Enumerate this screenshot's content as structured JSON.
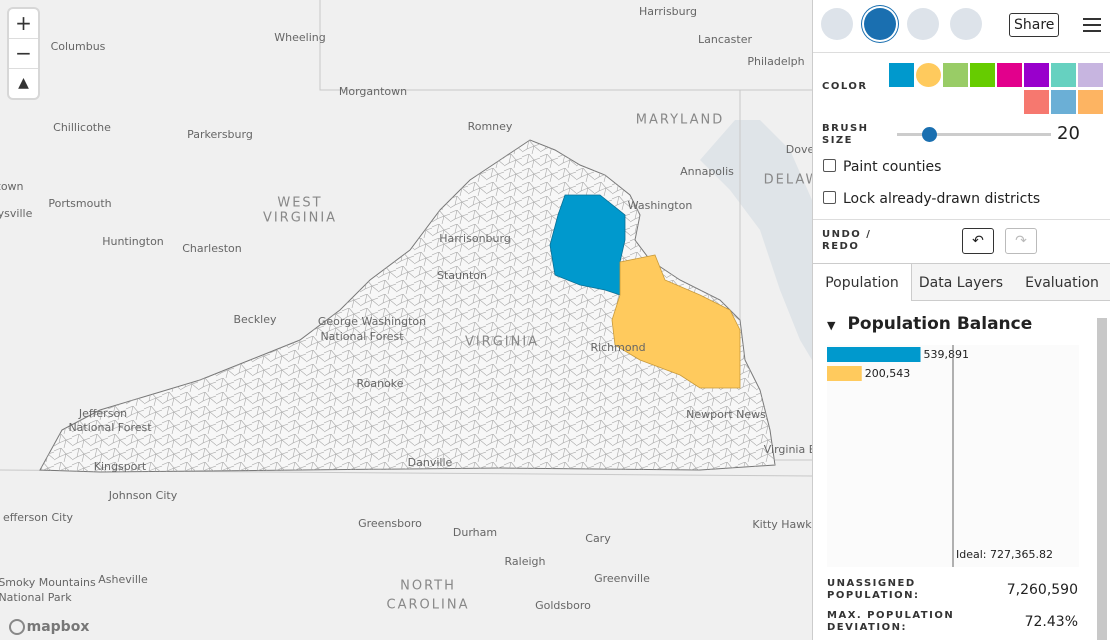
{
  "toolbar": {
    "share": "Share"
  },
  "color": {
    "label": "COLOR",
    "swatches": [
      "#0099cd",
      "#ffca5d",
      "#99cc66",
      "#66cc00",
      "#e2008c",
      "#9900cc",
      "#66d1c0",
      "#c7b5e0",
      "#f6786f",
      "#6bafd6",
      "#fdb462"
    ]
  },
  "brush": {
    "label": "BRUSH SIZE",
    "value": 20
  },
  "checkboxes": [
    "Paint counties",
    "Lock already-drawn districts"
  ],
  "undo_redo": "UNDO / REDO",
  "tabs": [
    "Population",
    "Data Layers",
    "Evaluation"
  ],
  "population_balance": {
    "title": "Population Balance",
    "values": [
      539891,
      200543
    ],
    "value_labels": [
      "539,891",
      "200,543"
    ],
    "colors": [
      "#0099cd",
      "#ffca5d"
    ],
    "ideal": 727365.82,
    "ideal_label": "Ideal: 727,365.82"
  },
  "stats": [
    {
      "label": "UNASSIGNED POPULATION:",
      "value": "7,260,590"
    },
    {
      "label": "MAX. POPULATION DEVIATION:",
      "value": "72.43%"
    }
  ],
  "map": {
    "labels": [
      "Columbus",
      "Wheeling",
      "Harrisburg",
      "Lancaster",
      "Philadelph",
      "Morgantown",
      "MARYLAND",
      "Chillicothe",
      "Parkersburg",
      "Romney",
      "Annapolis",
      "Dove",
      "DELAW",
      "Washington",
      "Portsmouth",
      "WEST",
      "VIRGINIA",
      "Huntington",
      "Charleston",
      "Harrisonburg",
      "Staunton",
      "Beckley",
      "George Washington",
      "National Forest",
      "VIRGINIA",
      "Richmond",
      "Roanoke",
      "Jefferson",
      "National Forest",
      "Newport News",
      "Virginia B",
      "Kingsport",
      "Danville",
      "Johnson City",
      "efferson City",
      "Greensboro",
      "Durham",
      "Kitty Hawk",
      "Cary",
      "Raleigh",
      "Asheville",
      "Greenville",
      "Smoky Mountains",
      "National Park",
      "NORTH",
      "CAROLINA",
      "Goldsboro",
      "town",
      "ysville"
    ],
    "attribution": "mapbox"
  }
}
